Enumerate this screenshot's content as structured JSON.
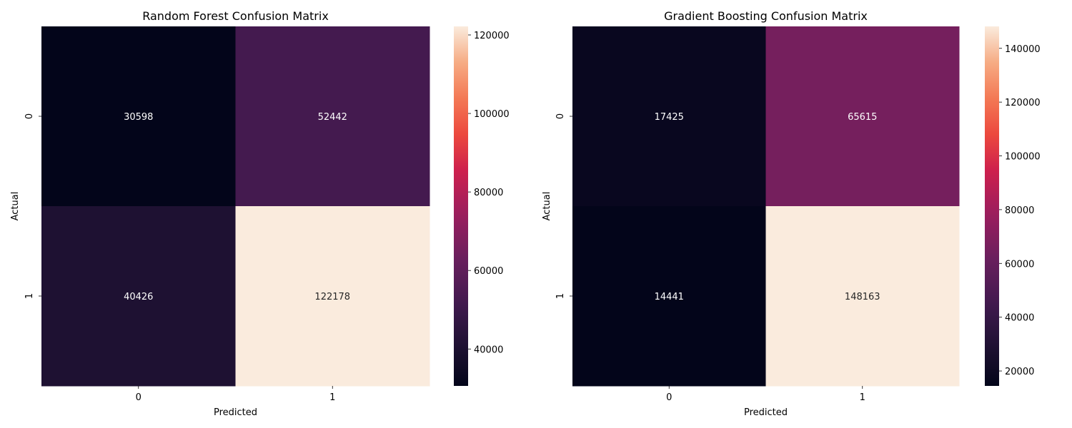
{
  "chart_data": [
    {
      "type": "heatmap",
      "title": "Random Forest Confusion Matrix",
      "xlabel": "Predicted",
      "ylabel": "Actual",
      "x_categories": [
        "0",
        "1"
      ],
      "y_categories": [
        "0",
        "1"
      ],
      "values": [
        [
          30598,
          52442
        ],
        [
          40426,
          122178
        ]
      ],
      "colorbar": {
        "range": [
          30598,
          122178
        ],
        "ticks": [
          40000,
          60000,
          80000,
          100000,
          120000
        ]
      },
      "colormap": "rocket"
    },
    {
      "type": "heatmap",
      "title": "Gradient Boosting Confusion Matrix",
      "xlabel": "Predicted",
      "ylabel": "Actual",
      "x_categories": [
        "0",
        "1"
      ],
      "y_categories": [
        "0",
        "1"
      ],
      "values": [
        [
          17425,
          65615
        ],
        [
          14441,
          148163
        ]
      ],
      "colorbar": {
        "range": [
          14441,
          148163
        ],
        "ticks": [
          20000,
          40000,
          60000,
          80000,
          100000,
          120000,
          140000
        ]
      },
      "colormap": "rocket"
    }
  ]
}
